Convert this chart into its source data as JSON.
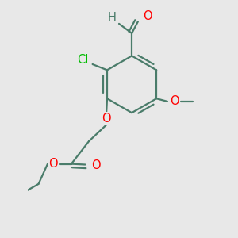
{
  "bg_color": "#e8e8e8",
  "bond_color": "#4a7c6a",
  "bond_width": 1.6,
  "atom_colors": {
    "O": "#ff0000",
    "Cl": "#00bb00",
    "H": "#4a7c6a",
    "C": "#4a7c6a"
  },
  "font_size": 10.5,
  "fig_size": [
    3.0,
    3.0
  ],
  "dpi": 100
}
